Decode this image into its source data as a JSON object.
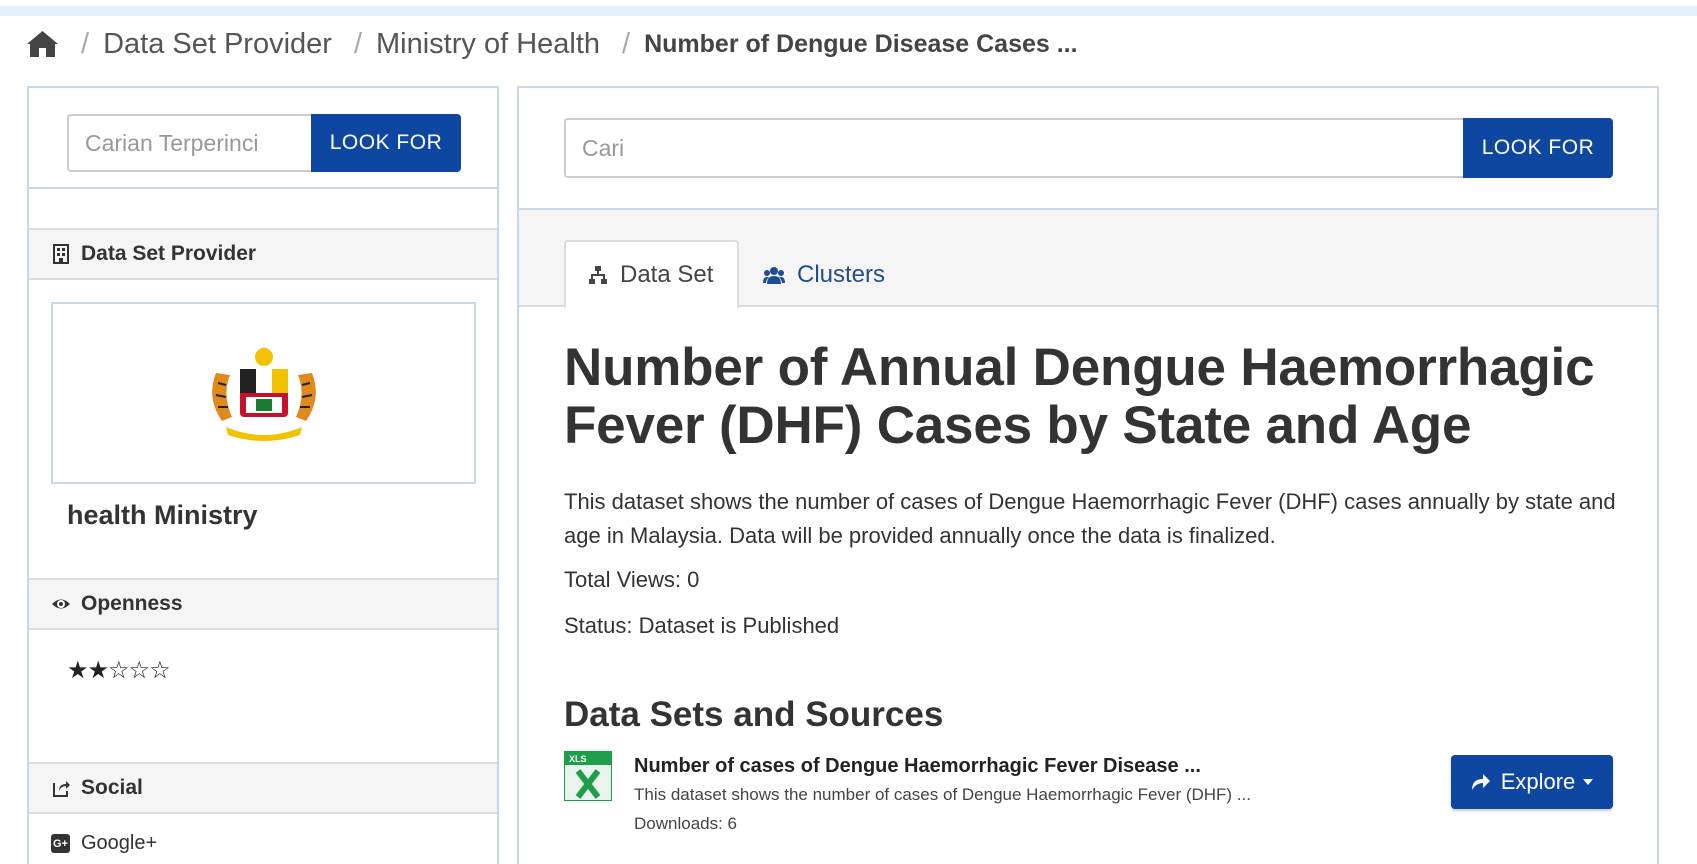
{
  "breadcrumb": {
    "items": [
      "Data Set Provider",
      "Ministry of Health"
    ],
    "current": "Number of Dengue Disease Cases ..."
  },
  "sidebar": {
    "search": {
      "placeholder": "Carian Terperinci",
      "button": "LOOK FOR"
    },
    "provider": {
      "heading": "Data Set Provider",
      "name": "health Ministry"
    },
    "openness": {
      "heading": "Openness",
      "stars": "★★☆☆☆",
      "rating": 2,
      "max": 5
    },
    "social": {
      "heading": "Social",
      "items": [
        "Google+"
      ]
    }
  },
  "main": {
    "search": {
      "placeholder": "Cari",
      "button": "LOOK FOR"
    },
    "tabs": [
      {
        "label": "Data Set",
        "active": true
      },
      {
        "label": "Clusters",
        "active": false
      }
    ],
    "title": "Number of Annual Dengue Haemorrhagic Fever (DHF) Cases by State and Age",
    "description": "This dataset shows the number of cases of Dengue Haemorrhagic Fever (DHF) cases annually by state and age in Malaysia. Data will be provided annually once the data is finalized.",
    "total_views": "Total Views: 0",
    "status": "Status: Dataset is Published",
    "section_title": "Data Sets and Sources",
    "resources": [
      {
        "title": "Number of cases of Dengue Haemorrhagic Fever Disease ...",
        "description": "This dataset shows the number of cases of Dengue Haemorrhagic Fever (DHF) ...",
        "downloads": "Downloads: 6",
        "format": "XLS",
        "action": "Explore"
      }
    ]
  },
  "colors": {
    "primary": "#0d47a1",
    "border": "#c9d8e4",
    "xls_green": "#1e9e4a"
  }
}
